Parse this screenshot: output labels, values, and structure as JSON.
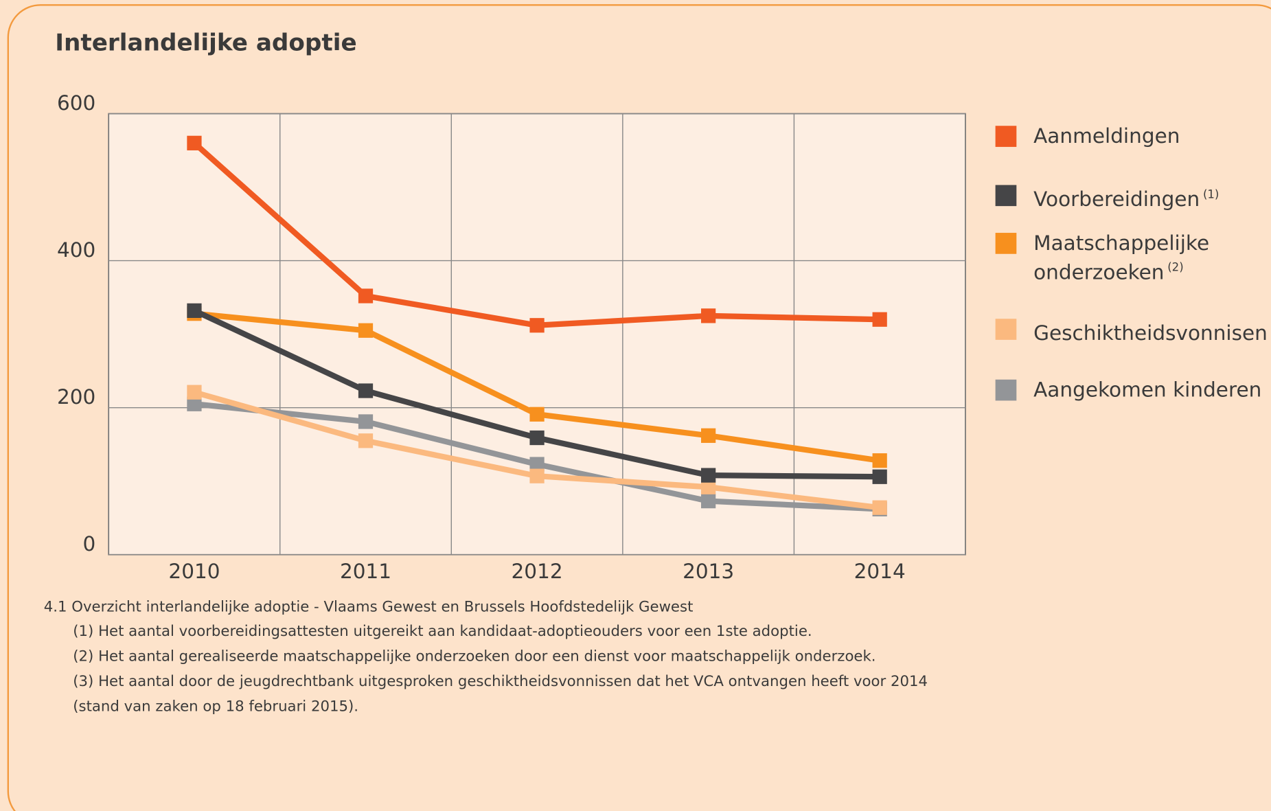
{
  "chart_data": {
    "type": "line",
    "title": "Interlandelijke adoptie",
    "categories": [
      "2010",
      "2011",
      "2012",
      "2013",
      "2014"
    ],
    "series": [
      {
        "name": "Aanmeldingen",
        "color": "#f05a22",
        "values": [
          560,
          352,
          312,
          325,
          320
        ]
      },
      {
        "name": "Voorbereidingen",
        "note": "(1)",
        "color": "#454547",
        "values": [
          332,
          223,
          159,
          108,
          106
        ]
      },
      {
        "name": "Maatschappelijke onderzoeken",
        "note": "(2)",
        "color": "#f7901e",
        "values": [
          328,
          305,
          191,
          162,
          128
        ]
      },
      {
        "name": "Geschiktheidsvonnisen",
        "note": "(3)",
        "color": "#fbb97f",
        "values": [
          221,
          155,
          107,
          92,
          64
        ]
      },
      {
        "name": "Aangekomen kinderen",
        "color": "#939598",
        "values": [
          205,
          181,
          123,
          73,
          62
        ]
      }
    ],
    "ylim": [
      0,
      600
    ],
    "yticks": [
      0,
      200,
      400,
      600
    ],
    "grid": true,
    "caption": "4.1 Overzicht interlandelijke adoptie - Vlaams Gewest en Brussels Hoofdstedelijk Gewest",
    "notes": [
      "(1) Het aantal voorbereidingsattesten uitgereikt aan kandidaat-adoptieouders voor een 1ste adoptie.",
      "(2) Het aantal gerealiseerde maatschappelijke onderzoeken door een dienst voor maatschappelijk onderzoek.",
      "(3) Het aantal door de jeugdrechtbank uitgesproken geschiktheidsvonnissen dat het VCA ontvangen heeft voor 2014",
      "(stand van zaken op 18 februari 2015)."
    ]
  }
}
